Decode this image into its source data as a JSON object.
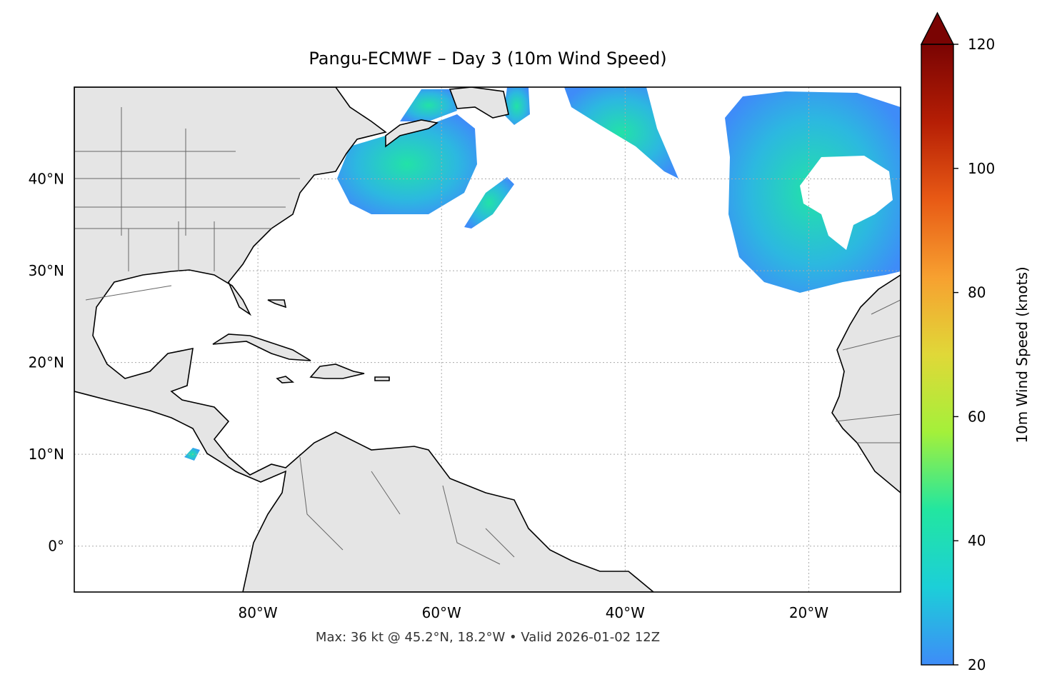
{
  "chart_data": {
    "type": "map",
    "title": "Pangu-ECMWF – Day 3 (10m Wind Speed)",
    "caption": "Max: 36 kt @ 45.2°N, 18.2°W • Valid 2026-01-02 12Z",
    "xlim": [
      -100,
      -10
    ],
    "ylim": [
      -5,
      50
    ],
    "xticks": [
      {
        "value": -80,
        "label": "80°W"
      },
      {
        "value": -60,
        "label": "60°W"
      },
      {
        "value": -40,
        "label": "40°W"
      },
      {
        "value": -20,
        "label": "20°W"
      }
    ],
    "yticks": [
      {
        "value": 0,
        "label": "0°"
      },
      {
        "value": 10,
        "label": "10°N"
      },
      {
        "value": 20,
        "label": "20°N"
      },
      {
        "value": 30,
        "label": "30°N"
      },
      {
        "value": 40,
        "label": "40°N"
      }
    ],
    "grid": true,
    "colorbar": {
      "label": "10m Wind Speed (knots)",
      "lim": [
        20,
        120
      ],
      "ticks": [
        20,
        40,
        60,
        80,
        100,
        120
      ],
      "colors": [
        "#3e8cf8",
        "#1ccfd8",
        "#22e6a0",
        "#a4f03a",
        "#e0d838",
        "#f7a030",
        "#e85a15",
        "#b51e05",
        "#7a0403"
      ]
    }
  }
}
